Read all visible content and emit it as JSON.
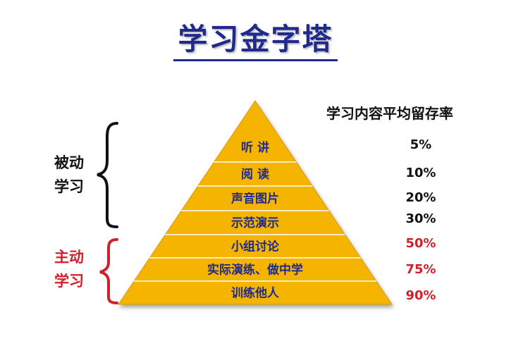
{
  "title": "学习金字塔",
  "rate_header": "学习内容平均留存率",
  "groups": {
    "passive": {
      "line1": "被动",
      "line2": "学习",
      "color": "#111111"
    },
    "active": {
      "line1": "主动",
      "line2": "学习",
      "color": "#d0202a"
    }
  },
  "colors": {
    "pyramid_fill": "#f4b400",
    "pyramid_label": "#1f2a8c",
    "passive_rate": "#111111",
    "active_rate": "#d0202a"
  },
  "levels": [
    {
      "label": "听 讲",
      "rate": "5%",
      "group": "passive"
    },
    {
      "label": "阅 读",
      "rate": "10%",
      "group": "passive"
    },
    {
      "label": "声音图片",
      "rate": "20%",
      "group": "passive"
    },
    {
      "label": "示范演示",
      "rate": "30%",
      "group": "passive"
    },
    {
      "label": "小组讨论",
      "rate": "50%",
      "group": "active"
    },
    {
      "label": "实际演练、做中学",
      "rate": "75%",
      "group": "active"
    },
    {
      "label": "训练他人",
      "rate": "90%",
      "group": "active"
    }
  ]
}
